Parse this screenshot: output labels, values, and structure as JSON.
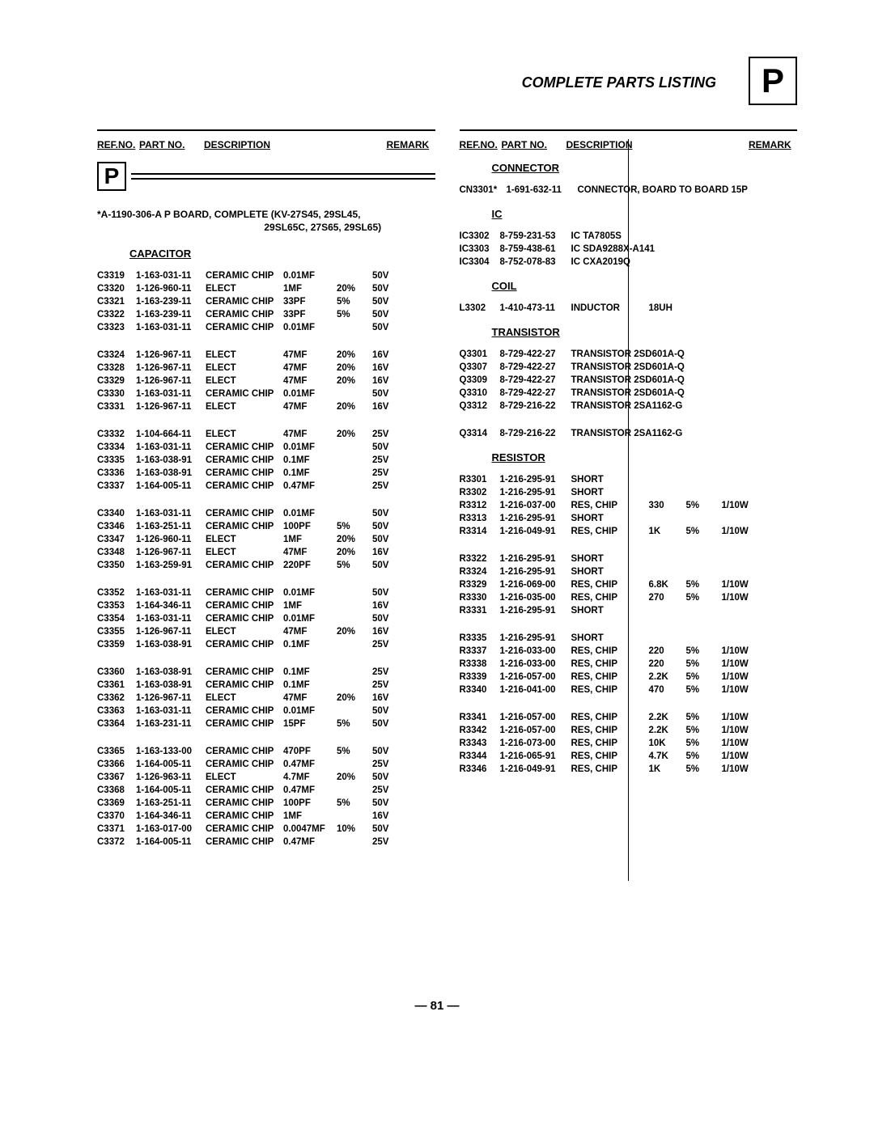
{
  "title": "COMPLETE PARTS LISTING",
  "badge": "P",
  "pageNum": "— 81 —",
  "headers": {
    "ref": "REF.NO.",
    "part": "PART NO.",
    "desc": "DESCRIPTION",
    "remark": "REMARK"
  },
  "board": {
    "line1": "*A-1190-306-A   P BOARD, COMPLETE  (KV-27S45, 29SL45,",
    "line2": "29SL65C, 27S65, 29SL65)"
  },
  "sections": {
    "capacitor": "CAPACITOR",
    "connector": "CONNECTOR",
    "ic": "IC",
    "coil": "COIL",
    "transistor": "TRANSISTOR",
    "resistor": "RESISTOR"
  },
  "capacitors": [
    [
      {
        "ref": "C3319",
        "part": "1-163-031-11",
        "desc": "CERAMIC CHIP",
        "v1": "0.01MF",
        "v2": "",
        "v3": "50V"
      },
      {
        "ref": "C3320",
        "part": "1-126-960-11",
        "desc": "ELECT",
        "v1": "1MF",
        "v2": "20%",
        "v3": "50V"
      },
      {
        "ref": "C3321",
        "part": "1-163-239-11",
        "desc": "CERAMIC CHIP",
        "v1": "33PF",
        "v2": "5%",
        "v3": "50V"
      },
      {
        "ref": "C3322",
        "part": "1-163-239-11",
        "desc": "CERAMIC CHIP",
        "v1": "33PF",
        "v2": "5%",
        "v3": "50V"
      },
      {
        "ref": "C3323",
        "part": "1-163-031-11",
        "desc": "CERAMIC CHIP",
        "v1": "0.01MF",
        "v2": "",
        "v3": "50V"
      }
    ],
    [
      {
        "ref": "C3324",
        "part": "1-126-967-11",
        "desc": "ELECT",
        "v1": "47MF",
        "v2": "20%",
        "v3": "16V"
      },
      {
        "ref": "C3328",
        "part": "1-126-967-11",
        "desc": "ELECT",
        "v1": "47MF",
        "v2": "20%",
        "v3": "16V"
      },
      {
        "ref": "C3329",
        "part": "1-126-967-11",
        "desc": "ELECT",
        "v1": "47MF",
        "v2": "20%",
        "v3": "16V"
      },
      {
        "ref": "C3330",
        "part": "1-163-031-11",
        "desc": "CERAMIC CHIP",
        "v1": "0.01MF",
        "v2": "",
        "v3": "50V"
      },
      {
        "ref": "C3331",
        "part": "1-126-967-11",
        "desc": "ELECT",
        "v1": "47MF",
        "v2": "20%",
        "v3": "16V"
      }
    ],
    [
      {
        "ref": "C3332",
        "part": "1-104-664-11",
        "desc": "ELECT",
        "v1": "47MF",
        "v2": "20%",
        "v3": "25V"
      },
      {
        "ref": "C3334",
        "part": "1-163-031-11",
        "desc": "CERAMIC CHIP",
        "v1": "0.01MF",
        "v2": "",
        "v3": "50V"
      },
      {
        "ref": "C3335",
        "part": "1-163-038-91",
        "desc": "CERAMIC CHIP",
        "v1": "0.1MF",
        "v2": "",
        "v3": "25V"
      },
      {
        "ref": "C3336",
        "part": "1-163-038-91",
        "desc": "CERAMIC CHIP",
        "v1": "0.1MF",
        "v2": "",
        "v3": "25V"
      },
      {
        "ref": "C3337",
        "part": "1-164-005-11",
        "desc": "CERAMIC CHIP",
        "v1": "0.47MF",
        "v2": "",
        "v3": "25V"
      }
    ],
    [
      {
        "ref": "C3340",
        "part": "1-163-031-11",
        "desc": "CERAMIC CHIP",
        "v1": "0.01MF",
        "v2": "",
        "v3": "50V"
      },
      {
        "ref": "C3346",
        "part": "1-163-251-11",
        "desc": "CERAMIC CHIP",
        "v1": "100PF",
        "v2": "5%",
        "v3": "50V"
      },
      {
        "ref": "C3347",
        "part": "1-126-960-11",
        "desc": "ELECT",
        "v1": "1MF",
        "v2": "20%",
        "v3": "50V"
      },
      {
        "ref": "C3348",
        "part": "1-126-967-11",
        "desc": "ELECT",
        "v1": "47MF",
        "v2": "20%",
        "v3": "16V"
      },
      {
        "ref": "C3350",
        "part": "1-163-259-91",
        "desc": "CERAMIC CHIP",
        "v1": "220PF",
        "v2": "5%",
        "v3": "50V"
      }
    ],
    [
      {
        "ref": "C3352",
        "part": "1-163-031-11",
        "desc": "CERAMIC CHIP",
        "v1": "0.01MF",
        "v2": "",
        "v3": "50V"
      },
      {
        "ref": "C3353",
        "part": "1-164-346-11",
        "desc": "CERAMIC CHIP",
        "v1": "1MF",
        "v2": "",
        "v3": "16V"
      },
      {
        "ref": "C3354",
        "part": "1-163-031-11",
        "desc": "CERAMIC CHIP",
        "v1": "0.01MF",
        "v2": "",
        "v3": "50V"
      },
      {
        "ref": "C3355",
        "part": "1-126-967-11",
        "desc": "ELECT",
        "v1": "47MF",
        "v2": "20%",
        "v3": "16V"
      },
      {
        "ref": "C3359",
        "part": "1-163-038-91",
        "desc": "CERAMIC CHIP",
        "v1": "0.1MF",
        "v2": "",
        "v3": "25V"
      }
    ],
    [
      {
        "ref": "C3360",
        "part": "1-163-038-91",
        "desc": "CERAMIC CHIP",
        "v1": "0.1MF",
        "v2": "",
        "v3": "25V"
      },
      {
        "ref": "C3361",
        "part": "1-163-038-91",
        "desc": "CERAMIC CHIP",
        "v1": "0.1MF",
        "v2": "",
        "v3": "25V"
      },
      {
        "ref": "C3362",
        "part": "1-126-967-11",
        "desc": "ELECT",
        "v1": "47MF",
        "v2": "20%",
        "v3": "16V"
      },
      {
        "ref": "C3363",
        "part": "1-163-031-11",
        "desc": "CERAMIC CHIP",
        "v1": "0.01MF",
        "v2": "",
        "v3": "50V"
      },
      {
        "ref": "C3364",
        "part": "1-163-231-11",
        "desc": "CERAMIC CHIP",
        "v1": "15PF",
        "v2": "5%",
        "v3": "50V"
      }
    ],
    [
      {
        "ref": "C3365",
        "part": "1-163-133-00",
        "desc": "CERAMIC CHIP",
        "v1": "470PF",
        "v2": "5%",
        "v3": "50V"
      },
      {
        "ref": "C3366",
        "part": "1-164-005-11",
        "desc": "CERAMIC CHIP",
        "v1": "0.47MF",
        "v2": "",
        "v3": "25V"
      },
      {
        "ref": "C3367",
        "part": "1-126-963-11",
        "desc": "ELECT",
        "v1": "4.7MF",
        "v2": "20%",
        "v3": "50V"
      },
      {
        "ref": "C3368",
        "part": "1-164-005-11",
        "desc": "CERAMIC CHIP",
        "v1": "0.47MF",
        "v2": "",
        "v3": "25V"
      },
      {
        "ref": "C3369",
        "part": "1-163-251-11",
        "desc": "CERAMIC CHIP",
        "v1": "100PF",
        "v2": "5%",
        "v3": "50V"
      },
      {
        "ref": "C3370",
        "part": "1-164-346-11",
        "desc": "CERAMIC CHIP",
        "v1": "1MF",
        "v2": "",
        "v3": "16V"
      },
      {
        "ref": "C3371",
        "part": "1-163-017-00",
        "desc": "CERAMIC CHIP",
        "v1": "0.0047MF",
        "v2": "10%",
        "v3": "50V"
      },
      {
        "ref": "C3372",
        "part": "1-164-005-11",
        "desc": "CERAMIC CHIP",
        "v1": "0.47MF",
        "v2": "",
        "v3": "25V"
      }
    ]
  ],
  "connectors": [
    {
      "ref": "CN3301*",
      "part": "1-691-632-11",
      "desc": "CONNECTOR, BOARD TO BOARD 15P"
    }
  ],
  "ics": [
    {
      "ref": "IC3302",
      "part": "8-759-231-53",
      "desc": "IC  TA7805S"
    },
    {
      "ref": "IC3303",
      "part": "8-759-438-61",
      "desc": "IC  SDA9288X-A141"
    },
    {
      "ref": "IC3304",
      "part": "8-752-078-83",
      "desc": "IC  CXA2019Q"
    }
  ],
  "coils": [
    {
      "ref": "L3302",
      "part": "1-410-473-11",
      "desc": "INDUCTOR",
      "v1": "18UH"
    }
  ],
  "transistors": [
    [
      {
        "ref": "Q3301",
        "part": "8-729-422-27",
        "desc": "TRANSISTOR  2SD601A-Q"
      },
      {
        "ref": "Q3307",
        "part": "8-729-422-27",
        "desc": "TRANSISTOR  2SD601A-Q"
      },
      {
        "ref": "Q3309",
        "part": "8-729-422-27",
        "desc": "TRANSISTOR  2SD601A-Q"
      },
      {
        "ref": "Q3310",
        "part": "8-729-422-27",
        "desc": "TRANSISTOR  2SD601A-Q"
      },
      {
        "ref": "Q3312",
        "part": "8-729-216-22",
        "desc": "TRANSISTOR  2SA1162-G"
      }
    ],
    [
      {
        "ref": "Q3314",
        "part": "8-729-216-22",
        "desc": "TRANSISTOR  2SA1162-G"
      }
    ]
  ],
  "resistors": [
    [
      {
        "ref": "R3301",
        "part": "1-216-295-91",
        "desc": "SHORT",
        "v1": "",
        "v2": "",
        "v3": ""
      },
      {
        "ref": "R3302",
        "part": "1-216-295-91",
        "desc": "SHORT",
        "v1": "",
        "v2": "",
        "v3": ""
      },
      {
        "ref": "R3312",
        "part": "1-216-037-00",
        "desc": "RES, CHIP",
        "v1": "330",
        "v2": "5%",
        "v3": "1/10W"
      },
      {
        "ref": "R3313",
        "part": "1-216-295-91",
        "desc": "SHORT",
        "v1": "",
        "v2": "",
        "v3": ""
      },
      {
        "ref": "R3314",
        "part": "1-216-049-91",
        "desc": "RES, CHIP",
        "v1": "1K",
        "v2": "5%",
        "v3": "1/10W"
      }
    ],
    [
      {
        "ref": "R3322",
        "part": "1-216-295-91",
        "desc": "SHORT",
        "v1": "",
        "v2": "",
        "v3": ""
      },
      {
        "ref": "R3324",
        "part": "1-216-295-91",
        "desc": "SHORT",
        "v1": "",
        "v2": "",
        "v3": ""
      },
      {
        "ref": "R3329",
        "part": "1-216-069-00",
        "desc": "RES, CHIP",
        "v1": "6.8K",
        "v2": "5%",
        "v3": "1/10W"
      },
      {
        "ref": "R3330",
        "part": "1-216-035-00",
        "desc": "RES, CHIP",
        "v1": "270",
        "v2": "5%",
        "v3": "1/10W"
      },
      {
        "ref": "R3331",
        "part": "1-216-295-91",
        "desc": "SHORT",
        "v1": "",
        "v2": "",
        "v3": ""
      }
    ],
    [
      {
        "ref": "R3335",
        "part": "1-216-295-91",
        "desc": "SHORT",
        "v1": "",
        "v2": "",
        "v3": ""
      },
      {
        "ref": "R3337",
        "part": "1-216-033-00",
        "desc": "RES, CHIP",
        "v1": "220",
        "v2": "5%",
        "v3": "1/10W"
      },
      {
        "ref": "R3338",
        "part": "1-216-033-00",
        "desc": "RES, CHIP",
        "v1": "220",
        "v2": "5%",
        "v3": "1/10W"
      },
      {
        "ref": "R3339",
        "part": "1-216-057-00",
        "desc": "RES, CHIP",
        "v1": "2.2K",
        "v2": "5%",
        "v3": "1/10W"
      },
      {
        "ref": "R3340",
        "part": "1-216-041-00",
        "desc": "RES, CHIP",
        "v1": "470",
        "v2": "5%",
        "v3": "1/10W"
      }
    ],
    [
      {
        "ref": "R3341",
        "part": "1-216-057-00",
        "desc": "RES, CHIP",
        "v1": "2.2K",
        "v2": "5%",
        "v3": "1/10W"
      },
      {
        "ref": "R3342",
        "part": "1-216-057-00",
        "desc": "RES, CHIP",
        "v1": "2.2K",
        "v2": "5%",
        "v3": "1/10W"
      },
      {
        "ref": "R3343",
        "part": "1-216-073-00",
        "desc": "RES, CHIP",
        "v1": "10K",
        "v2": "5%",
        "v3": "1/10W"
      },
      {
        "ref": "R3344",
        "part": "1-216-065-91",
        "desc": "RES, CHIP",
        "v1": "4.7K",
        "v2": "5%",
        "v3": "1/10W"
      },
      {
        "ref": "R3346",
        "part": "1-216-049-91",
        "desc": "RES, CHIP",
        "v1": "1K",
        "v2": "5%",
        "v3": "1/10W"
      }
    ]
  ]
}
